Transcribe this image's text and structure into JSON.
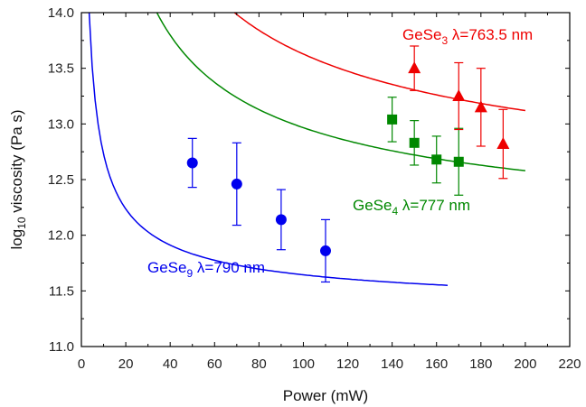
{
  "chart_data": {
    "type": "scatter",
    "xlabel": "Power (mW)",
    "ylabel": {
      "prefix": "log",
      "sub": "10",
      "rest": " viscosity (Pa s)"
    },
    "xlim": [
      0,
      220
    ],
    "ylim": [
      11.0,
      14.0
    ],
    "xticks": [
      0,
      20,
      40,
      60,
      80,
      100,
      120,
      140,
      160,
      180,
      200,
      220
    ],
    "yticks": [
      11.0,
      11.5,
      12.0,
      12.5,
      13.0,
      13.5,
      14.0
    ],
    "grid": false,
    "series": [
      {
        "color": "#0000ee",
        "marker": "circle",
        "x": [
          50,
          70,
          90,
          110
        ],
        "y": [
          12.65,
          12.46,
          12.14,
          11.86
        ],
        "err": [
          0.22,
          0.37,
          0.27,
          0.28
        ],
        "fit": {
          "x_from": 3.5,
          "x_to": 165
        },
        "label": {
          "base": "GeSe",
          "sub": "9",
          "rest": " λ=790 nm"
        }
      },
      {
        "color": "#008800",
        "marker": "square",
        "x": [
          140,
          150,
          160,
          170
        ],
        "y": [
          13.04,
          12.83,
          12.68,
          12.66
        ],
        "err": [
          0.2,
          0.2,
          0.21,
          0.3
        ],
        "fit": {
          "x_from": 34,
          "x_to": 200
        },
        "label": {
          "base": "GeSe",
          "sub": "4",
          "rest": " λ=777 nm"
        }
      },
      {
        "color": "#ee0000",
        "marker": "triangle",
        "x": [
          150,
          170,
          180,
          190
        ],
        "y": [
          13.5,
          13.25,
          13.15,
          12.82
        ],
        "err": [
          0.2,
          0.3,
          0.35,
          0.31
        ],
        "fit": {
          "x_from": 69,
          "x_to": 200
        },
        "label": {
          "base": "GeSe",
          "sub": "3",
          "rest": " λ=763.5 nm"
        }
      }
    ]
  }
}
